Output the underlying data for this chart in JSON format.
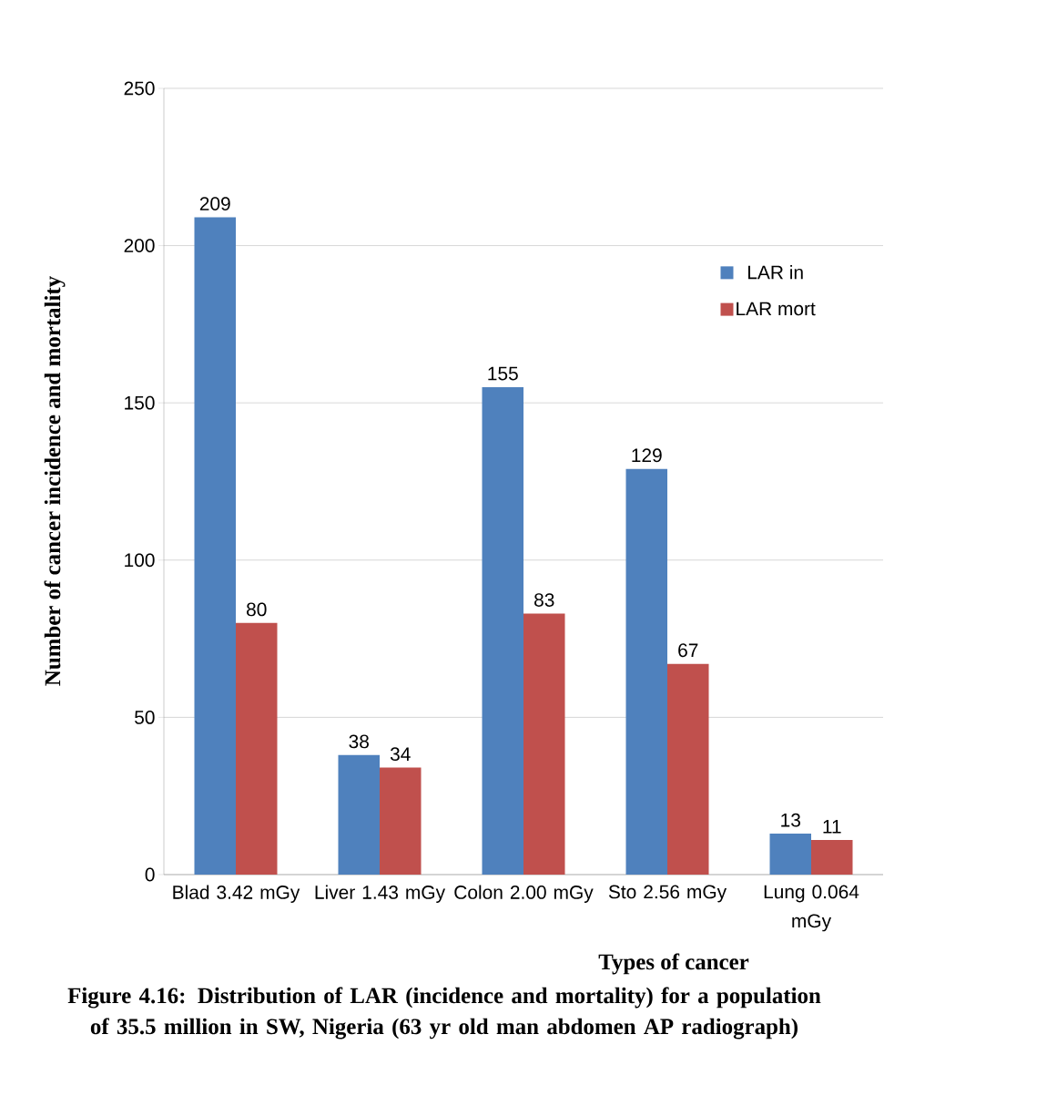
{
  "chart_data": {
    "type": "bar",
    "xlabel": "Types of cancer",
    "ylabel": "Number of cancer incidence and mortality",
    "annotations": [
      "Figure 4.16: Distribution of LAR (incidence and mortality) for a population of 35.5 million  in SW, Nigeria (63 yr old man abdomen AP radiograph)"
    ],
    "categories": [
      "Blad 3.42 mGy",
      "Liver 1.43 mGy",
      "Colon 2.00 mGy",
      "Sto 2.56 mGy",
      "Lung 0.064 mGy"
    ],
    "series": [
      {
        "name": "LAR in",
        "color": "#4f81bd",
        "values": [
          209,
          38,
          155,
          129,
          13
        ]
      },
      {
        "name": "LAR mort",
        "color": "#c0504d",
        "values": [
          80,
          34,
          83,
          67,
          11
        ]
      }
    ],
    "ylim": [
      0,
      250
    ],
    "yticks": [
      0,
      50,
      100,
      150,
      200,
      250
    ],
    "grid": "y",
    "legend": "right",
    "data_labels": true
  }
}
